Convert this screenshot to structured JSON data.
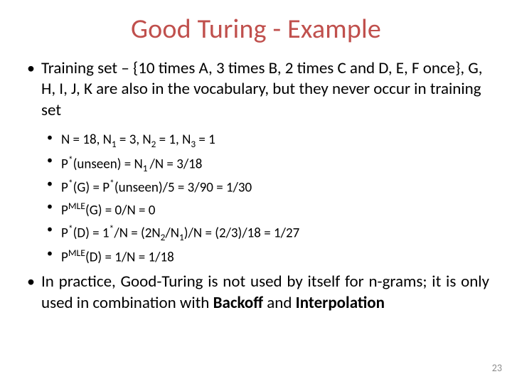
{
  "title": "Good Turing - Example",
  "bullets": {
    "b1": "Training set – {10 times A, 3 times B, 2 times C and D, E, F once}, G, H, I, J, K are also in the vocabulary, but they never occur in training set",
    "b2_pre": "In practice, Good-Turing is not used by itself for n-grams; it is only used in combination with ",
    "b2_bold1": "Backoff",
    "b2_mid": " and ",
    "b2_bold2": "Interpolation"
  },
  "sub": {
    "s1": "N = 18, N",
    "s1_sub1": "1",
    "s1_b": " = 3, N",
    "s1_sub2": "2",
    "s1_c": " = 1, N",
    "s1_sub3": "3",
    "s1_d": " = 1",
    "s2_a": "P",
    "s2_star": "*",
    "s2_b": "(unseen) = N",
    "s2_sub": "1 ",
    "s2_c": "/N = 3/18",
    "s3_a": "P",
    "s3_star1": "*",
    "s3_b": "(G) = P",
    "s3_star2": "*",
    "s3_c": "(unseen)/5 = 3/90 = 1/30",
    "s4_a": "P",
    "s4_sup": "MLE",
    "s4_b": "(G) = 0/N = 0",
    "s5_a": "P",
    "s5_star1": "*",
    "s5_b": "(D) = 1",
    "s5_star2": "*",
    "s5_c": "/N = (2N",
    "s5_sub1": "2",
    "s5_d": "/N",
    "s5_sub2": "1",
    "s5_e": ")/N = (2/3)/18 = 1/27",
    "s6_a": "P",
    "s6_sup": "MLE",
    "s6_b": "(D) = 1/N = 1/18"
  },
  "pagenum": "23"
}
